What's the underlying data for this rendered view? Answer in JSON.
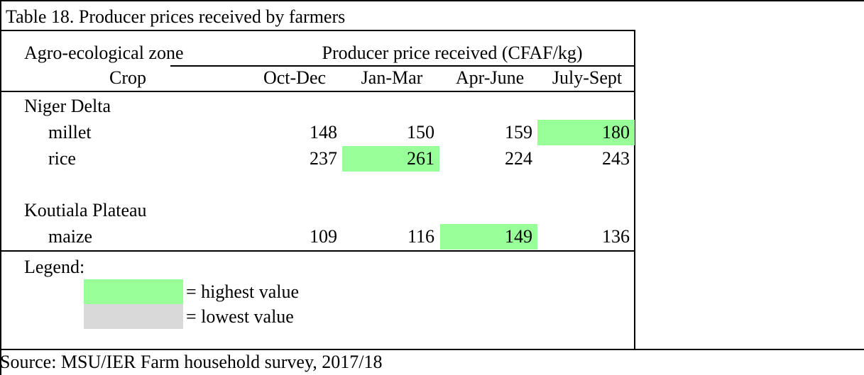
{
  "title": "Table 18. Producer prices received by farmers",
  "header": {
    "zone": "Agro-ecological zone",
    "price": "Producer price received (CFAF/kg)",
    "crop": "Crop",
    "periods": [
      "Oct-Dec",
      "Jan-Mar",
      "Apr-June",
      "July-Sept"
    ]
  },
  "groups": [
    {
      "name": "Niger Delta",
      "rows": [
        {
          "crop": "millet",
          "values": [
            148,
            150,
            159,
            180
          ],
          "highlight": 3
        },
        {
          "crop": "rice",
          "values": [
            237,
            261,
            224,
            243
          ],
          "highlight": 1
        }
      ]
    },
    {
      "name": "Koutiala Plateau",
      "rows": [
        {
          "crop": "maize",
          "values": [
            109,
            116,
            149,
            136
          ],
          "highlight": 2
        }
      ]
    }
  ],
  "legend": {
    "title": "Legend:",
    "items": [
      {
        "color": "#99ff99",
        "label": "= highest value"
      },
      {
        "color": "#d9d9d9",
        "label": "= lowest value"
      }
    ]
  },
  "source": "Source: MSU/IER Farm household survey, 2017/18"
}
